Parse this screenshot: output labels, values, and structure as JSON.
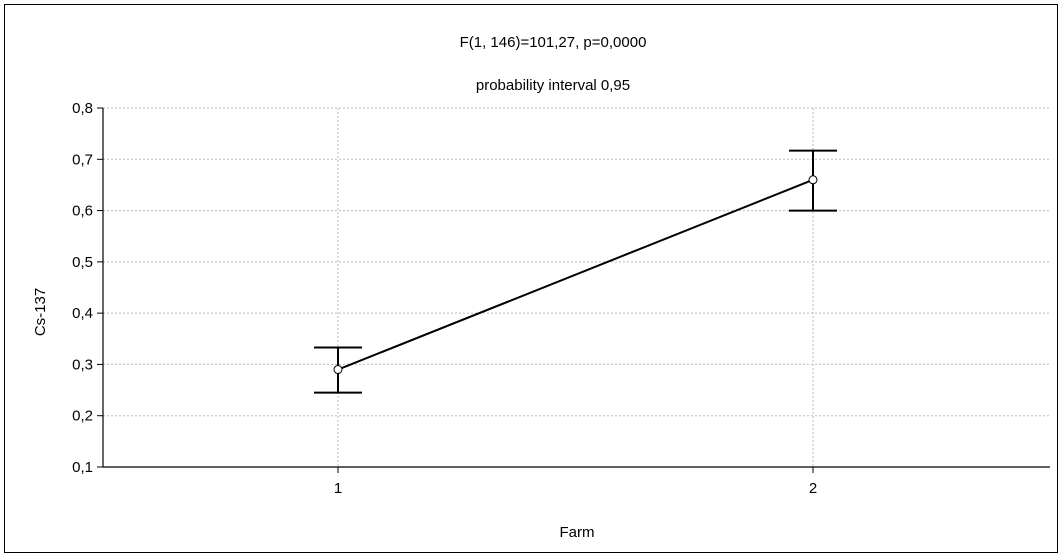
{
  "chart_data": {
    "type": "line",
    "title": "F(1, 146)=101,27, p=0,0000",
    "subtitle": "probability interval 0,95",
    "xlabel": "Farm",
    "ylabel": "Cs-137",
    "categories": [
      "1",
      "2"
    ],
    "series": [
      {
        "values": [
          0.29,
          0.66
        ],
        "ci_lower": [
          0.245,
          0.6
        ],
        "ci_upper": [
          0.333,
          0.717
        ]
      }
    ],
    "ylim": [
      0.1,
      0.8
    ],
    "yticks": [
      "0,1",
      "0,2",
      "0,3",
      "0,4",
      "0,5",
      "0,6",
      "0,7",
      "0,8"
    ],
    "grid": true,
    "colors": {
      "line": "#000000",
      "grid": "#bdbdbd",
      "marker_fill": "#ffffff"
    }
  }
}
